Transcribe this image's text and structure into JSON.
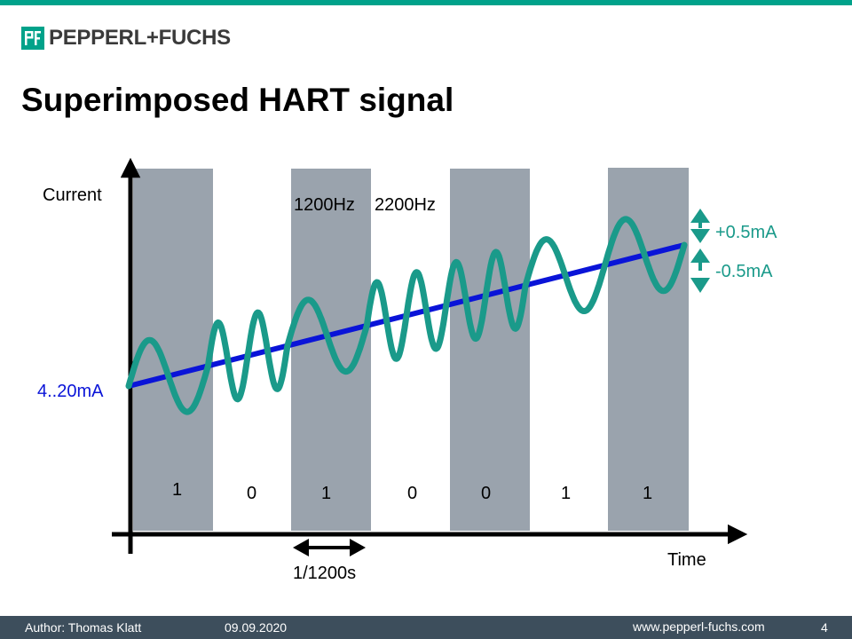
{
  "header": {
    "company_name": "PEPPERL+FUCHS",
    "logo_icon": "pf-logo-icon",
    "accent_color": "#00a28a"
  },
  "slide": {
    "title": "Superimposed HART signal"
  },
  "diagram": {
    "y_axis_label": "Current",
    "x_axis_label": "Time",
    "base_current_label": "4..20mA",
    "freq_label_1": "1200Hz",
    "freq_label_2": "2200Hz",
    "plus_amplitude_label": "+0.5mA",
    "minus_amplitude_label": "-0.5mA",
    "period_label": "1/1200s",
    "bits": [
      "1",
      "0",
      "1",
      "0",
      "0",
      "1",
      "1"
    ],
    "colors": {
      "analog_line": "#0a14d8",
      "hart_wave": "#1a9a8a",
      "shaded_band": "#9aa3ad",
      "axis": "#000000"
    }
  },
  "footer": {
    "author": "Author: Thomas Klatt",
    "date": "09.09.2020",
    "website": "www.pepperl-fuchs.com",
    "page_number": "4"
  }
}
